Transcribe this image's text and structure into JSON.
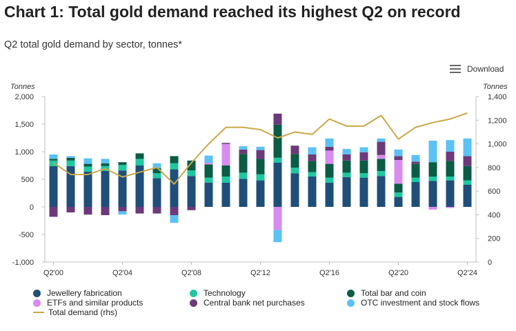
{
  "header": {
    "title": "Chart 1: Total gold demand reached its highest Q2 on record",
    "subtitle": "Q2 total gold demand by sector, tonnes*"
  },
  "toolbar": {
    "download_label": "Download",
    "menu_icon": "hamburger-menu-icon"
  },
  "chart_data": {
    "type": "bar",
    "stacked": true,
    "title": "Chart 1: Total gold demand reached its highest Q2 on record",
    "subtitle": "Q2 total gold demand by sector, tonnes*",
    "y_unit_left": "Tonnes",
    "y_unit_right": "Tonnes",
    "ylim_left": [
      -1000,
      2000
    ],
    "yticks_left": [
      "2,000",
      "1,500",
      "1,000",
      "500",
      "0",
      "-500",
      "-1,000"
    ],
    "ylim_right": [
      0,
      1400
    ],
    "yticks_right": [
      "1,400",
      "1,200",
      "1,000",
      "800",
      "600",
      "400",
      "200",
      "0"
    ],
    "categories": [
      "Q2'00",
      "Q2'01",
      "Q2'02",
      "Q2'03",
      "Q2'04",
      "Q2'05",
      "Q2'06",
      "Q2'07",
      "Q2'08",
      "Q2'09",
      "Q2'10",
      "Q2'11",
      "Q2'12",
      "Q2'13",
      "Q2'14",
      "Q2'15",
      "Q2'16",
      "Q2'17",
      "Q2'18",
      "Q2'19",
      "Q2'20",
      "Q2'21",
      "Q2'22",
      "Q2'23",
      "Q2'24"
    ],
    "xtick_labels": [
      "Q2'00",
      "Q2'04",
      "Q2'08",
      "Q2'12",
      "Q2'16",
      "Q2'20",
      "Q2'24"
    ],
    "series": [
      {
        "name": "Jewellery fabrication",
        "color": "#1f4e79",
        "values": [
          740,
          740,
          640,
          650,
          660,
          750,
          520,
          680,
          560,
          440,
          440,
          510,
          480,
          800,
          610,
          550,
          440,
          540,
          530,
          560,
          180,
          450,
          470,
          480,
          400
        ]
      },
      {
        "name": "Technology",
        "color": "#1ec8a0",
        "values": [
          100,
          100,
          90,
          90,
          100,
          120,
          90,
          110,
          100,
          90,
          110,
          110,
          110,
          90,
          100,
          80,
          90,
          80,
          80,
          90,
          80,
          80,
          80,
          70,
          80
        ]
      },
      {
        "name": "Total bar and coin",
        "color": "#0a5c45",
        "values": [
          30,
          50,
          50,
          50,
          50,
          100,
          90,
          130,
          180,
          240,
          200,
          340,
          280,
          600,
          250,
          200,
          250,
          220,
          230,
          220,
          160,
          250,
          260,
          280,
          260
        ]
      },
      {
        "name": "ETFs and similar products",
        "color": "#d98cf0",
        "values": [
          0,
          0,
          0,
          0,
          0,
          0,
          0,
          0,
          0,
          30,
          390,
          0,
          0,
          -420,
          0,
          0,
          240,
          0,
          0,
          70,
          430,
          0,
          -50,
          -20,
          0
        ]
      },
      {
        "name": "Central bank net purchases",
        "color": "#6b3a7a",
        "values": [
          -180,
          -100,
          -140,
          -150,
          -80,
          -120,
          -120,
          -150,
          -60,
          0,
          20,
          80,
          160,
          200,
          150,
          120,
          70,
          110,
          150,
          240,
          70,
          40,
          0,
          170,
          180
        ]
      },
      {
        "name": "OTC investment and stock flows",
        "color": "#5bc2f5",
        "values": [
          80,
          30,
          100,
          80,
          -60,
          0,
          90,
          -140,
          0,
          130,
          0,
          60,
          60,
          -220,
          0,
          130,
          150,
          100,
          90,
          60,
          120,
          120,
          390,
          210,
          320
        ]
      }
    ],
    "line": {
      "name": "Total demand (rhs)",
      "axis": "right",
      "color": "#c9a94a",
      "values": [
        840,
        740,
        740,
        790,
        720,
        760,
        800,
        660,
        840,
        1000,
        1140,
        1140,
        1120,
        1050,
        1100,
        1080,
        1210,
        1150,
        1150,
        1240,
        1040,
        1140,
        1180,
        1210,
        1260
      ]
    },
    "grid": false,
    "legend_position": "bottom"
  }
}
